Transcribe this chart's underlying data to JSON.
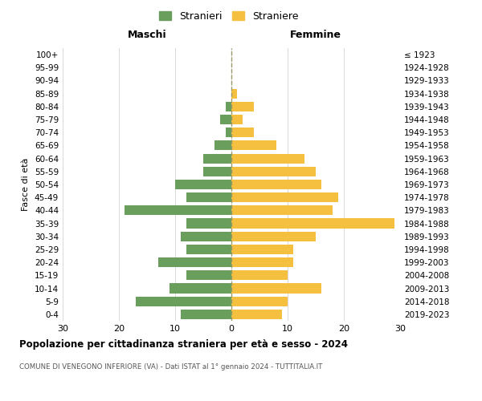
{
  "age_groups": [
    "0-4",
    "5-9",
    "10-14",
    "15-19",
    "20-24",
    "25-29",
    "30-34",
    "35-39",
    "40-44",
    "45-49",
    "50-54",
    "55-59",
    "60-64",
    "65-69",
    "70-74",
    "75-79",
    "80-84",
    "85-89",
    "90-94",
    "95-99",
    "100+"
  ],
  "birth_years": [
    "2019-2023",
    "2014-2018",
    "2009-2013",
    "2004-2008",
    "1999-2003",
    "1994-1998",
    "1989-1993",
    "1984-1988",
    "1979-1983",
    "1974-1978",
    "1969-1973",
    "1964-1968",
    "1959-1963",
    "1954-1958",
    "1949-1953",
    "1944-1948",
    "1939-1943",
    "1934-1938",
    "1929-1933",
    "1924-1928",
    "≤ 1923"
  ],
  "maschi": [
    9,
    17,
    11,
    8,
    13,
    8,
    9,
    8,
    19,
    8,
    10,
    5,
    5,
    3,
    1,
    2,
    1,
    0,
    0,
    0,
    0
  ],
  "femmine": [
    9,
    10,
    16,
    10,
    11,
    11,
    15,
    29,
    18,
    19,
    16,
    15,
    13,
    8,
    4,
    2,
    4,
    1,
    0,
    0,
    0
  ],
  "male_color": "#6a9e5c",
  "female_color": "#f5c040",
  "center_line_color": "#999966",
  "grid_color": "#d9d9d9",
  "background_color": "#ffffff",
  "title": "Popolazione per cittadinanza straniera per età e sesso - 2024",
  "subtitle": "COMUNE DI VENEGONO INFERIORE (VA) - Dati ISTAT al 1° gennaio 2024 - TUTTITALIA.IT",
  "ylabel_left": "Fasce di età",
  "legend_male": "Stranieri",
  "legend_female": "Straniere",
  "xlim": 30,
  "header_maschi": "Maschi",
  "header_femmine": "Femmine"
}
